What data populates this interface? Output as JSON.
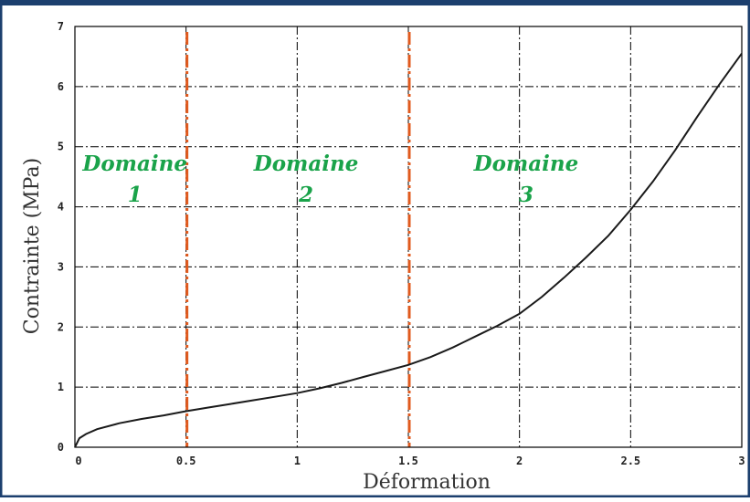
{
  "colors": {
    "frame": "#1c3f6e",
    "curve": "#1a1a1a",
    "grid": "#000000",
    "divider": "#e05a1e",
    "domain_label": "#1aa34a"
  },
  "chart_data": {
    "type": "line",
    "title": "",
    "xlabel": "Déformation",
    "ylabel": "Contrainte (MPa)",
    "xlim": [
      0,
      3
    ],
    "ylim": [
      0,
      7
    ],
    "x_ticks": [
      0,
      0.5,
      1,
      1.5,
      2,
      2.5,
      3
    ],
    "x_tick_labels": [
      "0",
      "0.5",
      "1",
      "1.5",
      "2",
      "2.5",
      "3"
    ],
    "y_ticks": [
      0,
      1,
      2,
      3,
      4,
      5,
      6,
      7
    ],
    "y_tick_labels": [
      "0",
      "1",
      "2",
      "3",
      "4",
      "5",
      "6",
      "7"
    ],
    "grid": true,
    "series": [
      {
        "x": [
          0,
          0.02,
          0.05,
          0.1,
          0.2,
          0.3,
          0.4,
          0.5,
          0.6,
          0.7,
          0.8,
          0.9,
          1.0,
          1.1,
          1.2,
          1.3,
          1.4,
          1.5,
          1.6,
          1.7,
          1.8,
          1.9,
          2.0,
          2.1,
          2.2,
          2.3,
          2.4,
          2.5,
          2.6,
          2.7,
          2.8,
          2.9,
          3.0
        ],
        "y": [
          0.0,
          0.15,
          0.22,
          0.3,
          0.4,
          0.47,
          0.53,
          0.6,
          0.66,
          0.72,
          0.78,
          0.84,
          0.9,
          0.98,
          1.07,
          1.17,
          1.27,
          1.37,
          1.5,
          1.66,
          1.84,
          2.02,
          2.22,
          2.5,
          2.82,
          3.16,
          3.52,
          3.95,
          4.42,
          4.94,
          5.5,
          6.04,
          6.55
        ]
      }
    ],
    "dividers": [
      0.5,
      1.5
    ],
    "annotations": [
      {
        "line1": "Domaine",
        "line2": "1",
        "x": 0.27,
        "y": 4.6
      },
      {
        "line1": "Domaine",
        "line2": "2",
        "x": 1.04,
        "y": 4.6
      },
      {
        "line1": "Domaine",
        "line2": "3",
        "x": 2.03,
        "y": 4.6
      }
    ]
  }
}
